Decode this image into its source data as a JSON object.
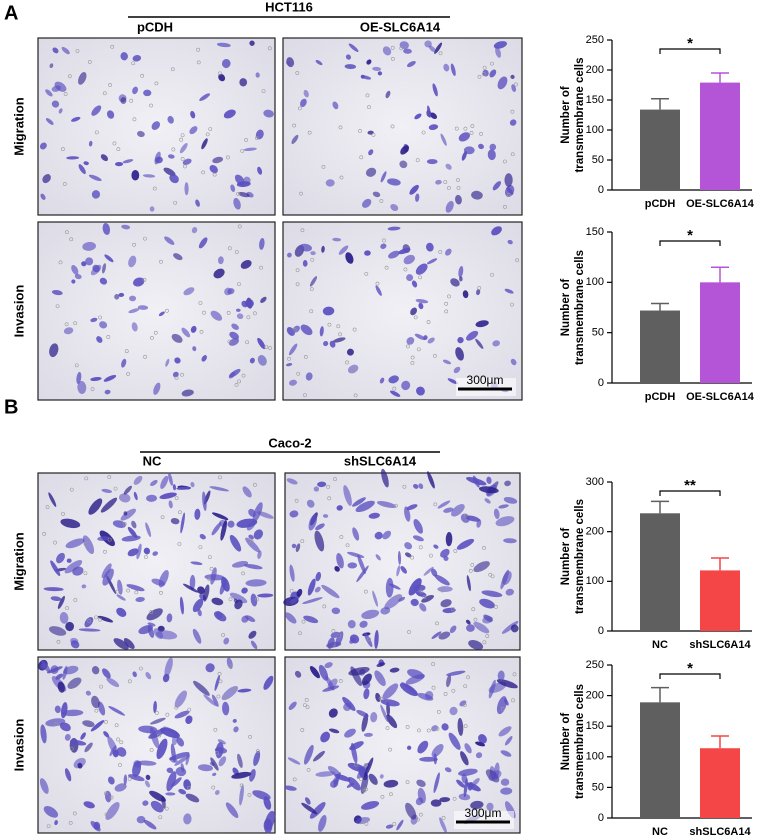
{
  "panels": [
    {
      "label": "A",
      "group": "HCT116",
      "columns": [
        "pCDH",
        "OE-SLC6A14"
      ],
      "rows": [
        "Migration",
        "Invasion"
      ],
      "scale_bar": "300μm"
    },
    {
      "label": "B",
      "group": "Caco-2",
      "columns": [
        "NC",
        "shSLC6A14"
      ],
      "rows": [
        "Migration",
        "Invasion"
      ],
      "scale_bar": "300μm"
    }
  ],
  "chart_data": [
    {
      "type": "bar",
      "ylabel": [
        "Number of",
        "transmembrane cells"
      ],
      "categories": [
        "pCDH",
        "OE-SLC6A14"
      ],
      "values": [
        134,
        179
      ],
      "errors": [
        18,
        16
      ],
      "colors": [
        "#5f5f5f",
        "#b455d8"
      ],
      "ylim": [
        0,
        250
      ],
      "yticks": [
        0,
        50,
        100,
        150,
        200,
        250
      ],
      "significance": "*"
    },
    {
      "type": "bar",
      "ylabel": [
        "Number of",
        "transmembrane cells"
      ],
      "categories": [
        "pCDH",
        "OE-SLC6A14"
      ],
      "values": [
        72,
        100
      ],
      "errors": [
        7,
        15
      ],
      "colors": [
        "#5f5f5f",
        "#b455d8"
      ],
      "ylim": [
        0,
        150
      ],
      "yticks": [
        0,
        50,
        100,
        150
      ],
      "significance": "*"
    },
    {
      "type": "bar",
      "ylabel": [
        "Number of",
        "transmembrane cells"
      ],
      "categories": [
        "NC",
        "shSLC6A14"
      ],
      "values": [
        237,
        122
      ],
      "errors": [
        24,
        25
      ],
      "colors": [
        "#5f5f5f",
        "#f44646"
      ],
      "ylim": [
        0,
        300
      ],
      "yticks": [
        0,
        100,
        200,
        300
      ],
      "significance": "**"
    },
    {
      "type": "bar",
      "ylabel": [
        "Number of",
        "transmembrane cells"
      ],
      "categories": [
        "NC",
        "shSLC6A14"
      ],
      "values": [
        189,
        114
      ],
      "errors": [
        24,
        20
      ],
      "colors": [
        "#5f5f5f",
        "#f44646"
      ],
      "ylim": [
        0,
        250
      ],
      "yticks": [
        0,
        50,
        100,
        150,
        200,
        250
      ],
      "significance": "*"
    }
  ]
}
